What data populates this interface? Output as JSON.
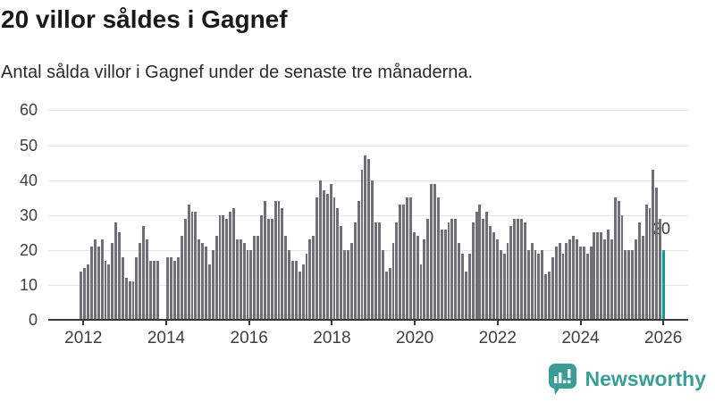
{
  "title": "20 villor såldes i Gagnef",
  "subtitle": "Antal sålda villor i Gagnef under de senaste tre månaderna.",
  "branding": {
    "name": "Newsworthy"
  },
  "colors": {
    "bar": "#706e76",
    "highlight": "#00a19d",
    "brand": "#3a9e97",
    "axis": "#3a3a3a",
    "grid": "#e4e4e4",
    "title_text": "#1a1a1a",
    "body_text": "#2b2b2b",
    "tick_text": "#3f3f3f"
  },
  "chart_data": {
    "type": "bar",
    "title": "20 villor såldes i Gagnef",
    "subtitle": "Antal sålda villor i Gagnef under de senaste tre månaderna.",
    "x_unit": "month",
    "start_month": "2011-12",
    "end_month": "2025-12",
    "x_tick_labels": [
      "2012",
      "2014",
      "2016",
      "2018",
      "2020",
      "2022",
      "2024",
      "2026"
    ],
    "y_ticks": [
      0,
      10,
      20,
      30,
      40,
      50,
      60
    ],
    "ylim": [
      0,
      60
    ],
    "grid": true,
    "legend": "none",
    "highlight": {
      "index": 168,
      "value": 20,
      "label": "20"
    },
    "values": [
      14,
      15,
      16,
      21,
      23,
      21,
      23,
      17,
      16,
      22,
      28,
      25,
      18,
      12,
      11,
      11,
      18,
      22,
      27,
      23,
      17,
      17,
      17,
      0,
      0,
      18,
      18,
      17,
      18,
      24,
      29,
      33,
      31,
      31,
      23,
      22,
      21,
      16,
      20,
      24,
      30,
      30,
      29,
      31,
      32,
      23,
      23,
      22,
      20,
      20,
      24,
      24,
      30,
      34,
      29,
      29,
      34,
      34,
      32,
      24,
      20,
      17,
      17,
      14,
      16,
      19,
      23,
      24,
      35,
      40,
      37,
      36,
      39,
      35,
      32,
      27,
      20,
      20,
      22,
      28,
      34,
      43,
      47,
      46,
      40,
      28,
      28,
      20,
      14,
      15,
      22,
      28,
      33,
      33,
      35,
      35,
      25,
      24,
      16,
      23,
      29,
      39,
      39,
      35,
      26,
      26,
      28,
      29,
      29,
      22,
      19,
      14,
      19,
      28,
      31,
      33,
      29,
      31,
      27,
      25,
      23,
      20,
      19,
      22,
      27,
      29,
      29,
      29,
      28,
      20,
      22,
      20,
      19,
      20,
      13,
      14,
      18,
      21,
      22,
      19,
      22,
      23,
      24,
      23,
      21,
      21,
      19,
      21,
      25,
      25,
      25,
      23,
      26,
      23,
      35,
      34,
      30,
      20,
      20,
      20,
      23,
      28,
      24,
      33,
      32,
      43,
      38,
      29,
      20
    ]
  }
}
